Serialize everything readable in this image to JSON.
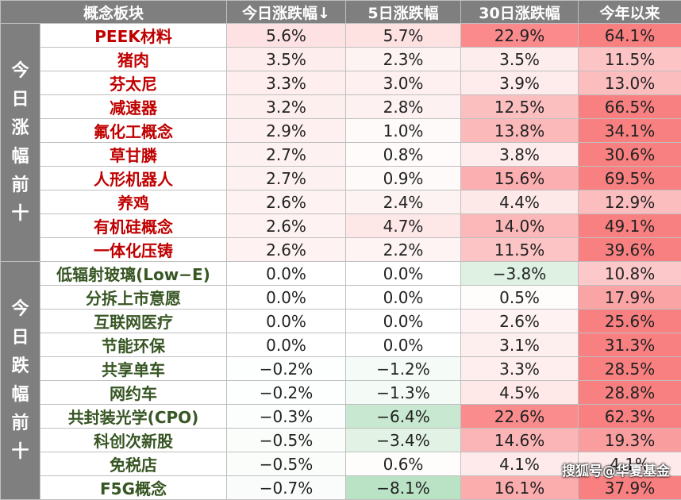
{
  "header": [
    "概念板块",
    "今日涨跌幅↓",
    "5日涨跌幅",
    "30日涨跌幅",
    "今年以来"
  ],
  "groups": [
    {
      "label": "今日涨幅前十",
      "rows": [
        [
          "PEEK材料",
          "5.6%",
          "5.7%",
          "22.9%",
          "64.1%"
        ],
        [
          "猪肉",
          "3.5%",
          "2.3%",
          "3.5%",
          "11.5%"
        ],
        [
          "芬太尼",
          "3.3%",
          "3.0%",
          "3.9%",
          "13.0%"
        ],
        [
          "减速器",
          "3.2%",
          "2.8%",
          "12.5%",
          "66.5%"
        ],
        [
          "氟化工概念",
          "2.9%",
          "1.0%",
          "13.8%",
          "34.1%"
        ],
        [
          "草甘膦",
          "2.7%",
          "0.8%",
          "3.8%",
          "30.6%"
        ],
        [
          "人形机器人",
          "2.7%",
          "0.9%",
          "15.6%",
          "69.5%"
        ],
        [
          "养鸡",
          "2.6%",
          "2.4%",
          "4.4%",
          "12.9%"
        ],
        [
          "有机硅概念",
          "2.6%",
          "4.7%",
          "14.0%",
          "49.1%"
        ],
        [
          "一体化压铸",
          "2.6%",
          "2.2%",
          "11.5%",
          "39.6%"
        ]
      ]
    },
    {
      "label": "今日跌幅前十",
      "rows": [
        [
          "低辐射玻璃(Low−E)",
          "0.0%",
          "0.0%",
          "−3.8%",
          "10.8%"
        ],
        [
          "分拆上市意愿",
          "0.0%",
          "0.0%",
          "0.5%",
          "17.9%"
        ],
        [
          "互联网医疗",
          "0.0%",
          "0.0%",
          "2.6%",
          "25.6%"
        ],
        [
          "节能环保",
          "0.0%",
          "0.0%",
          "3.1%",
          "31.3%"
        ],
        [
          "共享单车",
          "−0.2%",
          "−1.2%",
          "3.3%",
          "28.5%"
        ],
        [
          "网约车",
          "−0.2%",
          "−1.3%",
          "4.5%",
          "28.8%"
        ],
        [
          "共封装光学(CPO)",
          "−0.3%",
          "−6.4%",
          "22.6%",
          "62.3%"
        ],
        [
          "科创次新股",
          "−0.5%",
          "−3.4%",
          "14.6%",
          "19.3%"
        ],
        [
          "免税店",
          "−0.5%",
          "0.6%",
          "4.1%",
          "4.1%"
        ],
        [
          "F5G概念",
          "−0.7%",
          "−8.1%",
          "16.1%",
          "37.9%"
        ]
      ]
    }
  ],
  "watermark": "搜狐号@华夏基金"
}
